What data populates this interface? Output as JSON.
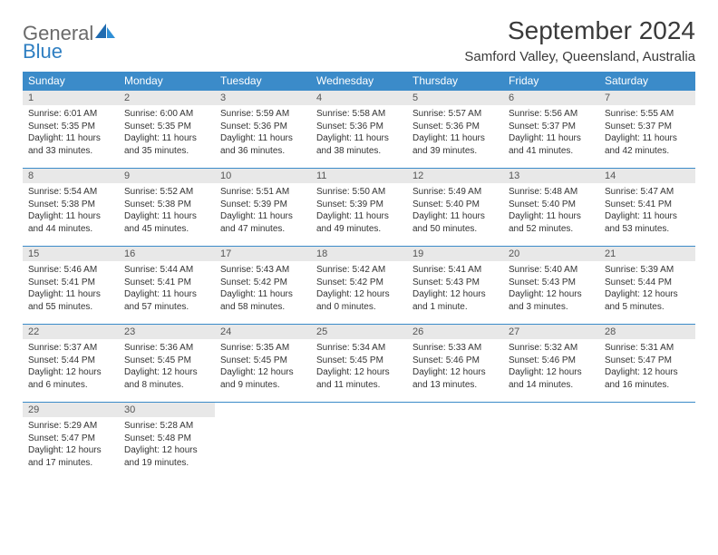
{
  "brand": {
    "word1": "General",
    "word2": "Blue"
  },
  "title": "September 2024",
  "location": "Samford Valley, Queensland, Australia",
  "colors": {
    "header_bg": "#3b8bc9",
    "header_fg": "#ffffff",
    "cell_border": "#3b8bc9",
    "daynum_bg": "#e8e8e8",
    "daynum_fg": "#555555",
    "body_fg": "#333333",
    "page_bg": "#ffffff",
    "logo_gray": "#6a6a6a",
    "logo_blue": "#2f7fc2"
  },
  "weekdays": [
    "Sunday",
    "Monday",
    "Tuesday",
    "Wednesday",
    "Thursday",
    "Friday",
    "Saturday"
  ],
  "weeks": [
    [
      {
        "n": 1,
        "sr": "6:01 AM",
        "ss": "5:35 PM",
        "dl": "11 hours and 33 minutes."
      },
      {
        "n": 2,
        "sr": "6:00 AM",
        "ss": "5:35 PM",
        "dl": "11 hours and 35 minutes."
      },
      {
        "n": 3,
        "sr": "5:59 AM",
        "ss": "5:36 PM",
        "dl": "11 hours and 36 minutes."
      },
      {
        "n": 4,
        "sr": "5:58 AM",
        "ss": "5:36 PM",
        "dl": "11 hours and 38 minutes."
      },
      {
        "n": 5,
        "sr": "5:57 AM",
        "ss": "5:36 PM",
        "dl": "11 hours and 39 minutes."
      },
      {
        "n": 6,
        "sr": "5:56 AM",
        "ss": "5:37 PM",
        "dl": "11 hours and 41 minutes."
      },
      {
        "n": 7,
        "sr": "5:55 AM",
        "ss": "5:37 PM",
        "dl": "11 hours and 42 minutes."
      }
    ],
    [
      {
        "n": 8,
        "sr": "5:54 AM",
        "ss": "5:38 PM",
        "dl": "11 hours and 44 minutes."
      },
      {
        "n": 9,
        "sr": "5:52 AM",
        "ss": "5:38 PM",
        "dl": "11 hours and 45 minutes."
      },
      {
        "n": 10,
        "sr": "5:51 AM",
        "ss": "5:39 PM",
        "dl": "11 hours and 47 minutes."
      },
      {
        "n": 11,
        "sr": "5:50 AM",
        "ss": "5:39 PM",
        "dl": "11 hours and 49 minutes."
      },
      {
        "n": 12,
        "sr": "5:49 AM",
        "ss": "5:40 PM",
        "dl": "11 hours and 50 minutes."
      },
      {
        "n": 13,
        "sr": "5:48 AM",
        "ss": "5:40 PM",
        "dl": "11 hours and 52 minutes."
      },
      {
        "n": 14,
        "sr": "5:47 AM",
        "ss": "5:41 PM",
        "dl": "11 hours and 53 minutes."
      }
    ],
    [
      {
        "n": 15,
        "sr": "5:46 AM",
        "ss": "5:41 PM",
        "dl": "11 hours and 55 minutes."
      },
      {
        "n": 16,
        "sr": "5:44 AM",
        "ss": "5:41 PM",
        "dl": "11 hours and 57 minutes."
      },
      {
        "n": 17,
        "sr": "5:43 AM",
        "ss": "5:42 PM",
        "dl": "11 hours and 58 minutes."
      },
      {
        "n": 18,
        "sr": "5:42 AM",
        "ss": "5:42 PM",
        "dl": "12 hours and 0 minutes."
      },
      {
        "n": 19,
        "sr": "5:41 AM",
        "ss": "5:43 PM",
        "dl": "12 hours and 1 minute."
      },
      {
        "n": 20,
        "sr": "5:40 AM",
        "ss": "5:43 PM",
        "dl": "12 hours and 3 minutes."
      },
      {
        "n": 21,
        "sr": "5:39 AM",
        "ss": "5:44 PM",
        "dl": "12 hours and 5 minutes."
      }
    ],
    [
      {
        "n": 22,
        "sr": "5:37 AM",
        "ss": "5:44 PM",
        "dl": "12 hours and 6 minutes."
      },
      {
        "n": 23,
        "sr": "5:36 AM",
        "ss": "5:45 PM",
        "dl": "12 hours and 8 minutes."
      },
      {
        "n": 24,
        "sr": "5:35 AM",
        "ss": "5:45 PM",
        "dl": "12 hours and 9 minutes."
      },
      {
        "n": 25,
        "sr": "5:34 AM",
        "ss": "5:45 PM",
        "dl": "12 hours and 11 minutes."
      },
      {
        "n": 26,
        "sr": "5:33 AM",
        "ss": "5:46 PM",
        "dl": "12 hours and 13 minutes."
      },
      {
        "n": 27,
        "sr": "5:32 AM",
        "ss": "5:46 PM",
        "dl": "12 hours and 14 minutes."
      },
      {
        "n": 28,
        "sr": "5:31 AM",
        "ss": "5:47 PM",
        "dl": "12 hours and 16 minutes."
      }
    ],
    [
      {
        "n": 29,
        "sr": "5:29 AM",
        "ss": "5:47 PM",
        "dl": "12 hours and 17 minutes."
      },
      {
        "n": 30,
        "sr": "5:28 AM",
        "ss": "5:48 PM",
        "dl": "12 hours and 19 minutes."
      },
      null,
      null,
      null,
      null,
      null
    ]
  ],
  "labels": {
    "sunrise": "Sunrise:",
    "sunset": "Sunset:",
    "daylight": "Daylight:"
  }
}
